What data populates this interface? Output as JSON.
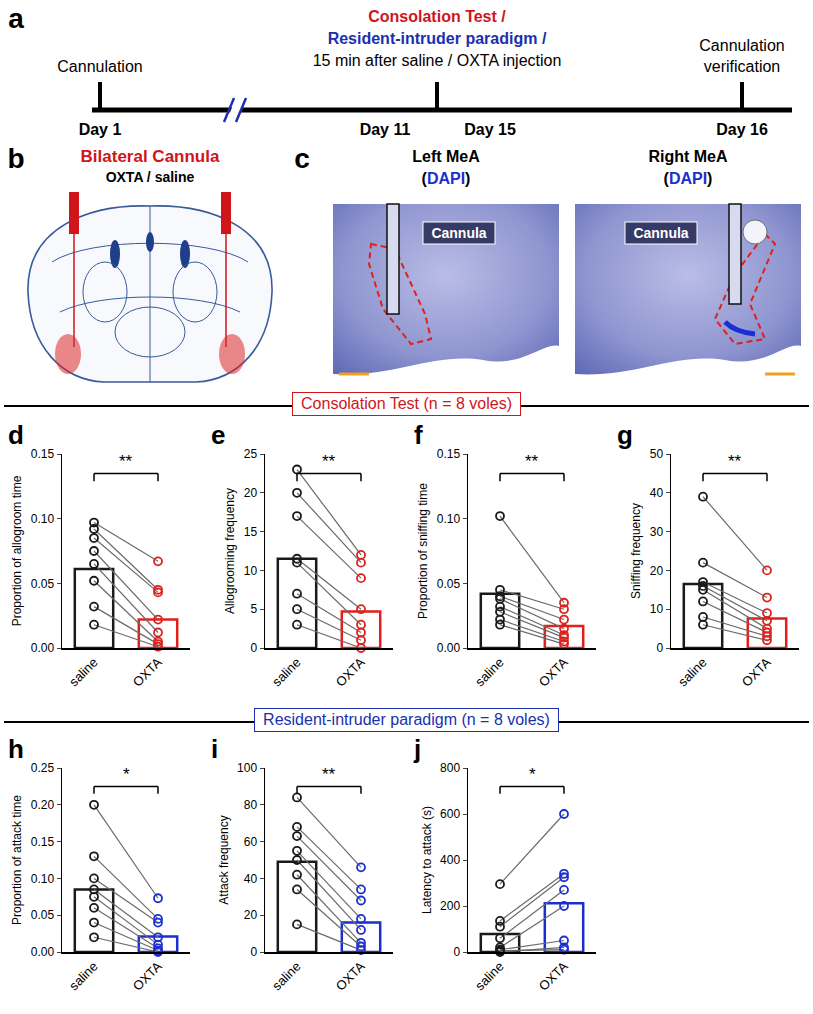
{
  "panels": {
    "a": {
      "panel": "a",
      "events": [
        {
          "day": "Day 1",
          "label": [
            "Cannulation"
          ]
        },
        {
          "day": "Day 11"
        },
        {
          "day": "Day 15"
        },
        {
          "day": "Day 16",
          "label": [
            "Cannulation",
            "verification"
          ]
        }
      ],
      "test_label": [
        {
          "text": "Consolation Test /",
          "color": "#d0151b"
        },
        {
          "text": "Resident-intruder paradigm /",
          "color": "#1b2fb0"
        },
        {
          "text": "15 min after saline / OXTA injection",
          "color": "#000000"
        }
      ]
    },
    "b": {
      "panel": "b",
      "label": "Bilateral Cannula",
      "label_color": "#d0151b",
      "sublabel": "OXTA / saline"
    },
    "c": {
      "panel": "c",
      "images": [
        {
          "title": "Left MeA",
          "stain": [
            {
              "text": "(",
              "color": "#000000"
            },
            {
              "text": "DAPI",
              "color": "#1b2fd0"
            },
            {
              "text": ")",
              "color": "#000000"
            }
          ],
          "marker": "Cannula"
        },
        {
          "title": "Right MeA",
          "stain": [
            {
              "text": "(",
              "color": "#000000"
            },
            {
              "text": "DAPI",
              "color": "#1b2fd0"
            },
            {
              "text": ")",
              "color": "#000000"
            }
          ],
          "marker": "Cannula"
        }
      ]
    }
  },
  "sections": [
    {
      "title": "Consolation Test (n = 8 voles)",
      "color": "#d0151b"
    },
    {
      "title": "Resident-intruder paradigm (n = 8 voles)",
      "color": "#1b2fb0"
    }
  ],
  "chart_data": [
    {
      "panel": "d",
      "section": 0,
      "type": "bar",
      "categories": [
        "saline",
        "OXTA"
      ],
      "values": [
        0.061,
        0.022
      ],
      "colors": [
        "#1a1a1a",
        "#e0201b"
      ],
      "points": [
        [
          0.097,
          0.092,
          0.085,
          0.075,
          0.065,
          0.052,
          0.032,
          0.018
        ],
        [
          0.067,
          0.045,
          0.043,
          0.022,
          0.012,
          0.005,
          0.003,
          0.001
        ]
      ],
      "ylabel": "Proportion of allogroom time",
      "ylim": [
        0,
        0.15
      ],
      "yticks": [
        {
          "value": 0,
          "label": "0.00"
        },
        {
          "value": 0.05,
          "label": "0.05"
        },
        {
          "value": 0.1,
          "label": "0.10"
        },
        {
          "value": 0.15,
          "label": "0.15"
        }
      ],
      "significance": "**"
    },
    {
      "panel": "e",
      "section": 0,
      "type": "bar",
      "categories": [
        "saline",
        "OXTA"
      ],
      "values": [
        11.5,
        4.7
      ],
      "colors": [
        "#1a1a1a",
        "#e0201b"
      ],
      "points": [
        [
          23,
          20,
          17,
          11.5,
          11,
          7,
          5,
          3
        ],
        [
          12,
          11,
          9,
          5,
          3,
          2,
          1,
          0
        ]
      ],
      "ylabel": "Allogrooming frequency",
      "ylim": [
        0,
        25
      ],
      "yticks": [
        0,
        5,
        10,
        15,
        20,
        25
      ],
      "significance": "**"
    },
    {
      "panel": "f",
      "section": 0,
      "type": "bar",
      "categories": [
        "saline",
        "OXTA"
      ],
      "values": [
        0.042,
        0.017
      ],
      "colors": [
        "#1a1a1a",
        "#e0201b"
      ],
      "points": [
        [
          0.102,
          0.045,
          0.04,
          0.038,
          0.032,
          0.028,
          0.022,
          0.018
        ],
        [
          0.035,
          0.03,
          0.022,
          0.015,
          0.01,
          0.008,
          0.005,
          0.003
        ]
      ],
      "ylabel": "Proportion of sniffing time",
      "ylim": [
        0,
        0.15
      ],
      "yticks": [
        {
          "value": 0,
          "label": "0.00"
        },
        {
          "value": 0.05,
          "label": "0.05"
        },
        {
          "value": 0.1,
          "label": "0.10"
        },
        {
          "value": 0.15,
          "label": "0.15"
        }
      ],
      "significance": "**"
    },
    {
      "panel": "g",
      "section": 0,
      "type": "bar",
      "categories": [
        "saline",
        "OXTA"
      ],
      "values": [
        16.5,
        7.6
      ],
      "colors": [
        "#1a1a1a",
        "#e0201b"
      ],
      "points": [
        [
          39,
          22,
          17,
          16,
          15,
          12,
          8,
          6
        ],
        [
          20,
          13,
          9,
          7,
          5,
          4,
          3,
          2
        ]
      ],
      "ylabel": "Sniffing frequency",
      "ylim": [
        0,
        50
      ],
      "yticks": [
        0,
        10,
        20,
        30,
        40,
        50
      ],
      "significance": "**"
    },
    {
      "panel": "h",
      "section": 1,
      "type": "bar",
      "categories": [
        "saline",
        "OXTA"
      ],
      "values": [
        0.085,
        0.021
      ],
      "colors": [
        "#1a1a1a",
        "#1b2fd0"
      ],
      "points": [
        [
          0.2,
          0.13,
          0.1,
          0.085,
          0.075,
          0.06,
          0.04,
          0.02
        ],
        [
          0.073,
          0.045,
          0.04,
          0.02,
          0.01,
          0.005,
          0.002,
          0
        ]
      ],
      "ylabel": "Proportion of attack time",
      "ylim": [
        0,
        0.25
      ],
      "yticks": [
        {
          "value": 0,
          "label": "0.00"
        },
        {
          "value": 0.05,
          "label": "0.05"
        },
        {
          "value": 0.1,
          "label": "0.10"
        },
        {
          "value": 0.15,
          "label": "0.15"
        },
        {
          "value": 0.2,
          "label": "0.20"
        },
        {
          "value": 0.25,
          "label": "0.25"
        }
      ],
      "significance": "*"
    },
    {
      "panel": "i",
      "section": 1,
      "type": "bar",
      "categories": [
        "saline",
        "OXTA"
      ],
      "values": [
        49,
        16
      ],
      "colors": [
        "#1a1a1a",
        "#1b2fd0"
      ],
      "points": [
        [
          84,
          68,
          63,
          55,
          50,
          42,
          34,
          15
        ],
        [
          46,
          34,
          28,
          18,
          12,
          5,
          3,
          1
        ]
      ],
      "ylabel": "Attack frequency",
      "ylim": [
        0,
        100
      ],
      "yticks": [
        0,
        20,
        40,
        60,
        80,
        100
      ],
      "significance": "**"
    },
    {
      "panel": "j",
      "section": 1,
      "type": "bar",
      "categories": [
        "saline",
        "OXTA"
      ],
      "values": [
        78,
        212
      ],
      "colors": [
        "#1a1a1a",
        "#1b2fd0"
      ],
      "points": [
        [
          295,
          135,
          110,
          60,
          20,
          10,
          5,
          0
        ],
        [
          600,
          340,
          325,
          270,
          200,
          50,
          10,
          20
        ]
      ],
      "ylabel": "Latency to attack (s)",
      "ylim": [
        0,
        800
      ],
      "yticks": [
        0,
        200,
        400,
        600,
        800
      ],
      "significance": "*"
    }
  ]
}
